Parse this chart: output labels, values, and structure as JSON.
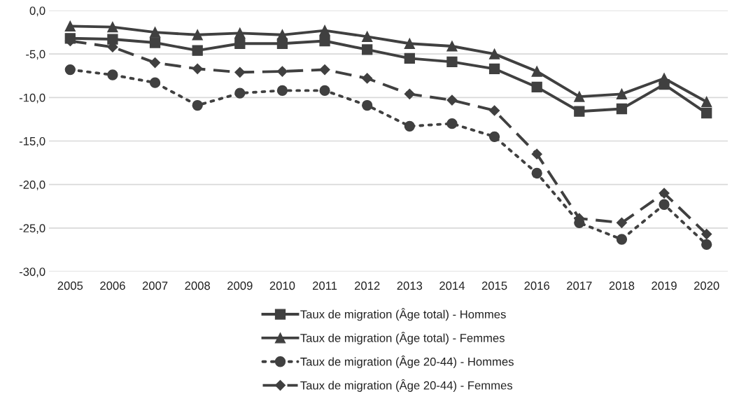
{
  "chart_data": {
    "type": "line",
    "categories": [
      "2005",
      "2006",
      "2007",
      "2008",
      "2009",
      "2010",
      "2011",
      "2012",
      "2013",
      "2014",
      "2015",
      "2016",
      "2017",
      "2018",
      "2019",
      "2020"
    ],
    "series": [
      {
        "name": "Taux de migration (Âge total) - Hommes",
        "color": "#404040",
        "marker": "square",
        "line_style": "solid",
        "values": [
          -3.2,
          -3.3,
          -3.7,
          -4.6,
          -3.8,
          -3.8,
          -3.5,
          -4.5,
          -5.5,
          -5.9,
          -6.7,
          -8.8,
          -11.6,
          -11.3,
          -8.5,
          -11.8
        ]
      },
      {
        "name": "Taux de migration (Âge total) - Femmes",
        "color": "#404040",
        "marker": "triangle",
        "line_style": "solid",
        "values": [
          -1.8,
          -1.9,
          -2.5,
          -2.8,
          -2.6,
          -2.8,
          -2.3,
          -3.0,
          -3.8,
          -4.1,
          -5.0,
          -7.0,
          -9.9,
          -9.6,
          -7.8,
          -10.5
        ]
      },
      {
        "name": "Taux de migration (Âge 20-44) - Hommes",
        "color": "#404040",
        "marker": "circle",
        "line_style": "dotted",
        "values": [
          -6.8,
          -7.4,
          -8.3,
          -10.9,
          -9.5,
          -9.2,
          -9.2,
          -10.9,
          -13.3,
          -13.0,
          -14.5,
          -18.7,
          -24.4,
          -26.3,
          -22.3,
          -26.9
        ]
      },
      {
        "name": "Taux de migration (Âge 20-44) - Femmes",
        "color": "#404040",
        "marker": "diamond",
        "line_style": "dashed",
        "values": [
          -3.5,
          -4.2,
          -6.0,
          -6.7,
          -7.1,
          -7.0,
          -6.8,
          -7.8,
          -9.6,
          -10.3,
          -11.5,
          -16.5,
          -23.9,
          -24.4,
          -21.0,
          -25.7
        ]
      }
    ],
    "ylim": [
      -30,
      0
    ],
    "yticks": [
      {
        "value": 0,
        "label": "0,0"
      },
      {
        "value": -5,
        "label": "-5,0"
      },
      {
        "value": -10,
        "label": "-10,0"
      },
      {
        "value": -15,
        "label": "-15,0"
      },
      {
        "value": -20,
        "label": "-20,0"
      },
      {
        "value": -25,
        "label": "-25,0"
      },
      {
        "value": -30,
        "label": "-30,0"
      }
    ],
    "grid": "y",
    "legend": "bottom"
  }
}
